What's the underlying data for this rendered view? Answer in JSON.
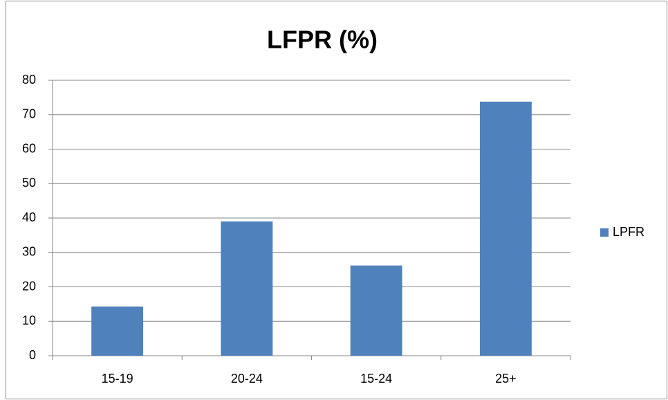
{
  "chart_data": {
    "type": "bar",
    "title": "LFPR (%)",
    "categories": [
      "15-19",
      "20-24",
      "15-24",
      "25+"
    ],
    "series": [
      {
        "name": "LPFR",
        "color": "#4f81bd",
        "values": [
          14.3,
          39,
          26.2,
          73.8
        ]
      }
    ],
    "ylim": [
      0,
      80
    ],
    "yticks": [
      0,
      10,
      20,
      30,
      40,
      50,
      60,
      70,
      80
    ],
    "grid": true,
    "legend": "right"
  }
}
